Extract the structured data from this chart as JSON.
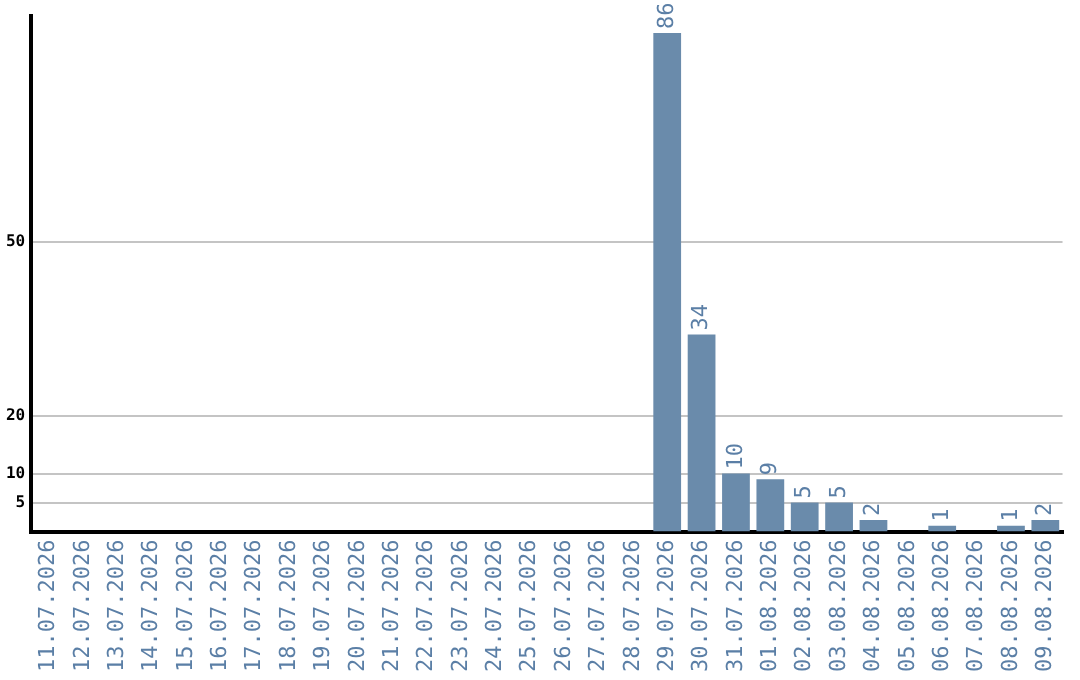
{
  "chart_data": {
    "type": "bar",
    "categories": [
      "11.07.2026",
      "12.07.2026",
      "13.07.2026",
      "14.07.2026",
      "15.07.2026",
      "16.07.2026",
      "17.07.2026",
      "18.07.2026",
      "19.07.2026",
      "20.07.2026",
      "21.07.2026",
      "22.07.2026",
      "23.07.2026",
      "24.07.2026",
      "25.07.2026",
      "26.07.2026",
      "27.07.2026",
      "28.07.2026",
      "29.07.2026",
      "30.07.2026",
      "31.07.2026",
      "01.08.2026",
      "02.08.2026",
      "03.08.2026",
      "04.08.2026",
      "05.08.2026",
      "06.08.2026",
      "07.08.2026",
      "08.08.2026",
      "09.08.2026"
    ],
    "values": [
      0,
      0,
      0,
      0,
      0,
      0,
      0,
      0,
      0,
      0,
      0,
      0,
      0,
      0,
      0,
      0,
      0,
      0,
      86,
      34,
      10,
      9,
      5,
      5,
      2,
      0,
      1,
      0,
      1,
      2
    ],
    "value_labels": [
      null,
      null,
      null,
      null,
      null,
      null,
      null,
      null,
      null,
      null,
      null,
      null,
      null,
      null,
      null,
      null,
      null,
      null,
      "86",
      "34",
      "10",
      "9",
      "5",
      "5",
      "2",
      null,
      "1",
      null,
      "1",
      "2"
    ],
    "color": "#6a8bab",
    "ylim": [
      0,
      89
    ],
    "yticks": [
      5,
      10,
      20,
      50
    ],
    "grid": "y",
    "legend": false
  }
}
